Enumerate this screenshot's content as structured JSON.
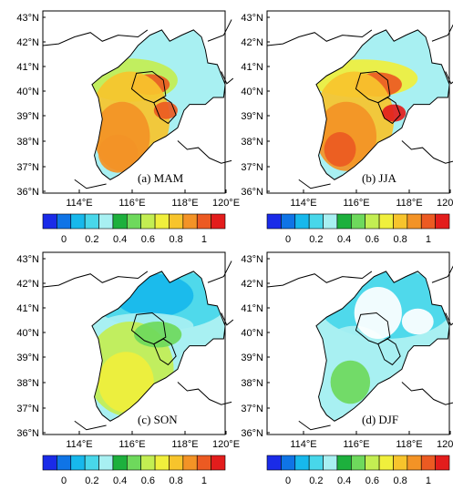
{
  "figure": {
    "lat_labels": [
      "43°N",
      "42°N",
      "41°N",
      "40°N",
      "39°N",
      "38°N",
      "37°N",
      "36°N"
    ],
    "lon_labels": [
      "114°E",
      "116°E",
      "118°E",
      "120°E"
    ],
    "colorbar": {
      "labels": [
        "0",
        "0.2",
        "0.4",
        "0.6",
        "0.8",
        "1"
      ],
      "colors": [
        "#1a2be8",
        "#0f74e6",
        "#17b8ec",
        "#48d7ea",
        "#a8f0f2",
        "#1db03d",
        "#6ed95c",
        "#c3ee52",
        "#f0ef3c",
        "#f7c42c",
        "#f39326",
        "#ec5a22",
        "#e31d1c"
      ]
    },
    "panels": [
      {
        "label": "(a)  MAM"
      },
      {
        "label": "(b)  JJA"
      },
      {
        "label": "(c)  SON"
      },
      {
        "label": "(d)  DJF"
      }
    ]
  }
}
